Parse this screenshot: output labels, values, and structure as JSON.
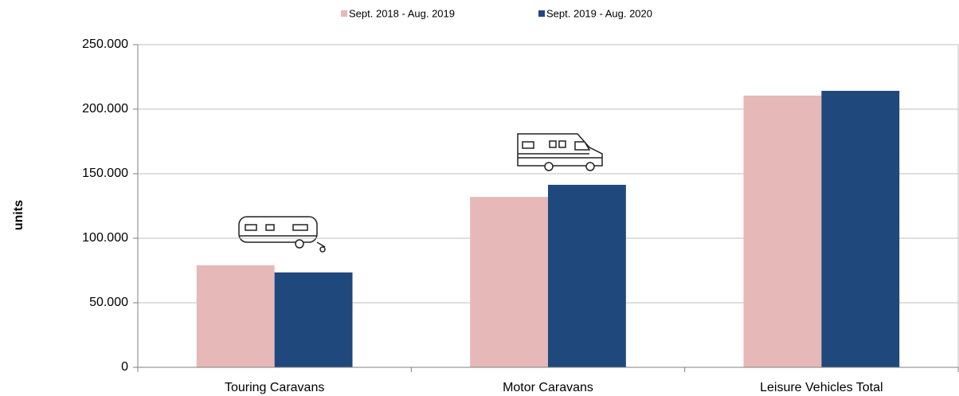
{
  "chart_data": {
    "type": "bar",
    "y_label": "units",
    "categories": [
      "Touring Caravans",
      "Motor Caravans",
      "Leisure Vehicles Total"
    ],
    "series": [
      {
        "name": "Sept. 2018 - Aug. 2019",
        "color": "#e6b8b7",
        "values": [
          79000,
          132000,
          210500
        ]
      },
      {
        "name": "Sept. 2019 - Aug. 2020",
        "color": "#1f497d",
        "values": [
          73500,
          141400,
          214200
        ]
      }
    ],
    "ylim": [
      0,
      250000
    ],
    "yticks": [
      0,
      {
        "value": 50000,
        "label": "50.000"
      },
      {
        "value": 100000,
        "label": "100.000"
      },
      {
        "value": 150000,
        "label": "150.000"
      },
      {
        "value": 200000,
        "label": "200.000"
      },
      {
        "value": 250000,
        "label": "250.000"
      }
    ],
    "grid": true,
    "legend": "top"
  }
}
